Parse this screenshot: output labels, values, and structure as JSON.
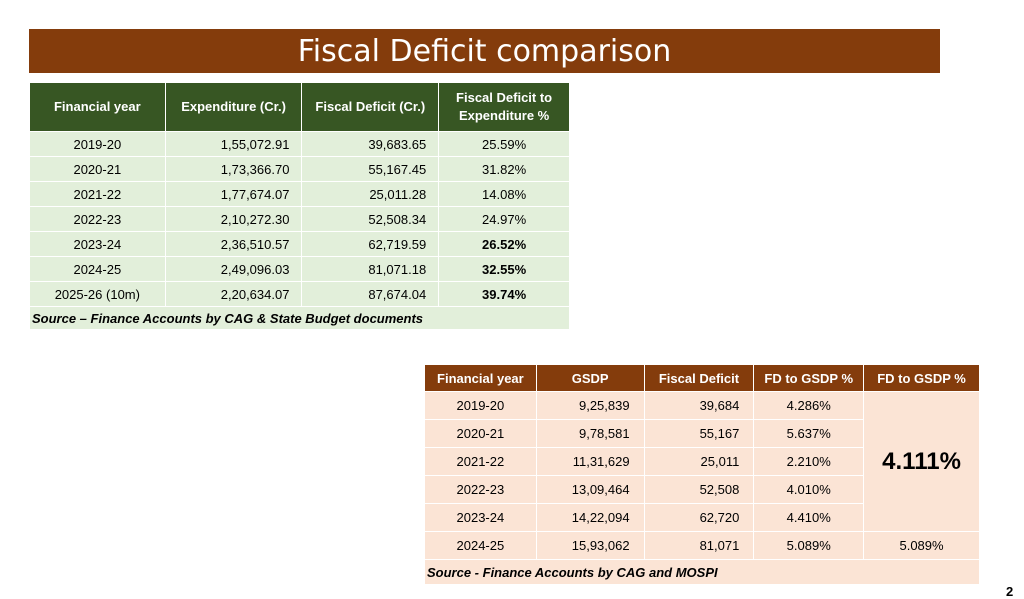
{
  "title": "Fiscal Deficit comparison",
  "table1": {
    "headers": [
      "Financial year",
      "Expenditure (Cr.)",
      "Fiscal Deficit (Cr.)",
      "Fiscal Deficit to Expenditure %"
    ],
    "rows": [
      [
        "2019-20",
        "1,55,072.91",
        "39,683.65",
        "25.59%"
      ],
      [
        "2020-21",
        "1,73,366.70",
        "55,167.45",
        "31.82%"
      ],
      [
        "2021-22",
        "1,77,674.07",
        "25,011.28",
        "14.08%"
      ],
      [
        "2022-23",
        "2,10,272.30",
        "52,508.34",
        "24.97%"
      ],
      [
        "2023-24",
        "2,36,510.57",
        "62,719.59",
        "26.52%"
      ],
      [
        "2024-25",
        "2,49,096.03",
        "81,071.18",
        "32.55%"
      ],
      [
        "2025-26 (10m)",
        "2,20,634.07",
        "87,674.04",
        "39.74%"
      ]
    ],
    "source": "Source – Finance Accounts by CAG & State Budget documents"
  },
  "table2": {
    "headers": [
      "Financial year",
      "GSDP",
      "Fiscal Deficit",
      "FD to GSDP %",
      "FD to GSDP %"
    ],
    "rows": [
      [
        "2019-20",
        "9,25,839",
        "39,684",
        "4.286%"
      ],
      [
        "2020-21",
        "9,78,581",
        "55,167",
        "5.637%"
      ],
      [
        "2021-22",
        "11,31,629",
        "25,011",
        "2.210%"
      ],
      [
        "2022-23",
        "13,09,464",
        "52,508",
        "4.010%"
      ],
      [
        "2023-24",
        "14,22,094",
        "62,720",
        "4.410%"
      ],
      [
        "2024-25",
        "15,93,062",
        "81,071",
        "5.089%"
      ]
    ],
    "avg_2019_24": "4.111%",
    "last_col_2024_25": "5.089%",
    "source": "Source - Finance Accounts by CAG and MOSPI"
  },
  "page_number": "2"
}
